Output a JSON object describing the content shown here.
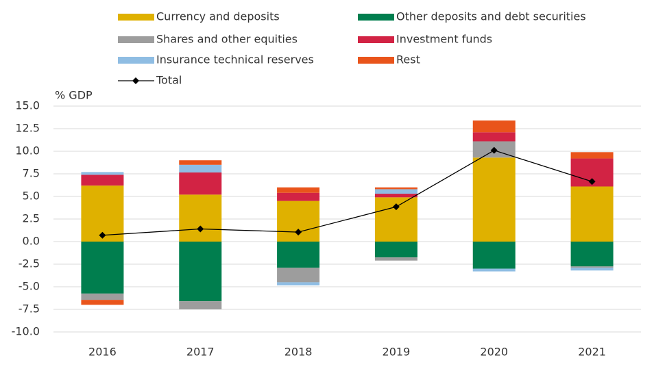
{
  "chart_data": {
    "type": "stacked-bar-line",
    "y_axis_label": "% GDP",
    "categories": [
      "2016",
      "2017",
      "2018",
      "2019",
      "2020",
      "2021"
    ],
    "series": [
      {
        "name": "Currency and deposits",
        "color": "#dfb100",
        "values": [
          6.2,
          5.2,
          4.5,
          4.9,
          9.3,
          6.1
        ]
      },
      {
        "name": "Other deposits and debt securities",
        "color": "#007e4e",
        "values": [
          -5.75,
          -6.6,
          -2.9,
          -1.75,
          -3.0,
          -2.75
        ]
      },
      {
        "name": "Shares and other equities",
        "color": "#9d9d9d",
        "values": [
          -0.7,
          -0.9,
          -1.6,
          -0.35,
          1.8,
          -0.15
        ]
      },
      {
        "name": "Investment funds",
        "color": "#d22344",
        "values": [
          1.2,
          2.45,
          0.9,
          0.4,
          1.0,
          3.1
        ]
      },
      {
        "name": "Insurance technical reserves",
        "color": "#8fbde3",
        "values": [
          0.3,
          0.85,
          -0.35,
          0.5,
          -0.3,
          -0.3
        ]
      },
      {
        "name": "Rest",
        "color": "#e9541b",
        "values": [
          -0.55,
          0.5,
          0.6,
          0.2,
          1.3,
          0.7
        ]
      },
      {
        "name": "Total",
        "color": "#000000",
        "type": "line",
        "values": [
          0.7,
          1.4,
          1.05,
          3.85,
          10.1,
          6.65
        ]
      }
    ],
    "ylim": [
      -10,
      15
    ],
    "yticks": [
      {
        "value": -10,
        "label": "-10.0"
      },
      {
        "value": -7.5,
        "label": "-7.5"
      },
      {
        "value": -5,
        "label": "-5.0"
      },
      {
        "value": -2.5,
        "label": "-2.5"
      },
      {
        "value": 0,
        "label": "0.0"
      },
      {
        "value": 2.5,
        "label": "2.5"
      },
      {
        "value": 5,
        "label": "5.0"
      },
      {
        "value": 7.5,
        "label": "7.5"
      },
      {
        "value": 10,
        "label": "10.0"
      },
      {
        "value": 12.5,
        "label": "12.5"
      },
      {
        "value": 15,
        "label": "15.0"
      }
    ],
    "grid": true
  }
}
